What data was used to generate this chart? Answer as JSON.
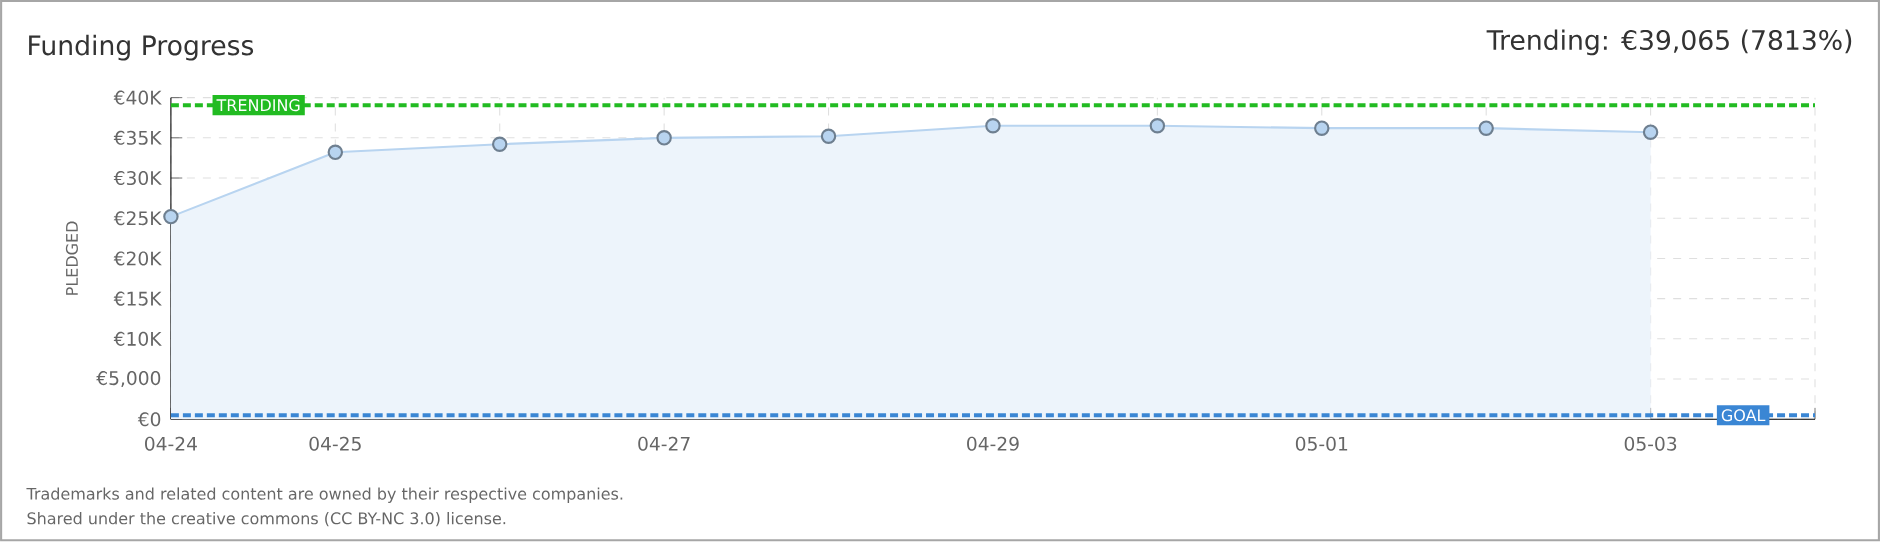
{
  "chart_data": {
    "type": "area",
    "title": "Funding Progress",
    "subtitle": "Trending: €39,065 (7813%)",
    "ylabel": "PLEDGED",
    "categories": [
      "04-24",
      "04-25",
      null,
      "04-27",
      null,
      "04-29",
      null,
      "05-01",
      null,
      "05-03",
      null
    ],
    "series": [
      {
        "color": "#b8d4f0",
        "values": [
          25200,
          33200,
          34200,
          35000,
          35200,
          36500,
          36500,
          36200,
          36200,
          35700,
          null
        ]
      }
    ],
    "ylim": [
      0,
      40000
    ],
    "yticks": [
      {
        "value": 0,
        "label": "€0"
      },
      {
        "value": 5000,
        "label": "€5,000"
      },
      {
        "value": 10000,
        "label": "€10K"
      },
      {
        "value": 15000,
        "label": "€15K"
      },
      {
        "value": 20000,
        "label": "€20K"
      },
      {
        "value": 25000,
        "label": "€25K"
      },
      {
        "value": 30000,
        "label": "€30K"
      },
      {
        "value": 35000,
        "label": "€35K"
      },
      {
        "value": 40000,
        "label": "€40K"
      }
    ],
    "ref_lines": [
      {
        "axis": "y",
        "value": 39065,
        "label": "TRENDING",
        "color": "#22bb22",
        "line_style": "dashed"
      },
      {
        "axis": "y",
        "value": 500,
        "label": "GOAL",
        "color": "#3a86d4",
        "line_style": "dashed"
      }
    ],
    "annotations": [
      "Trademarks and related content are owned by their respective companies.",
      "Shared under the creative commons (CC BY-NC 3.0) license."
    ],
    "grid": true,
    "marker": "circle"
  }
}
